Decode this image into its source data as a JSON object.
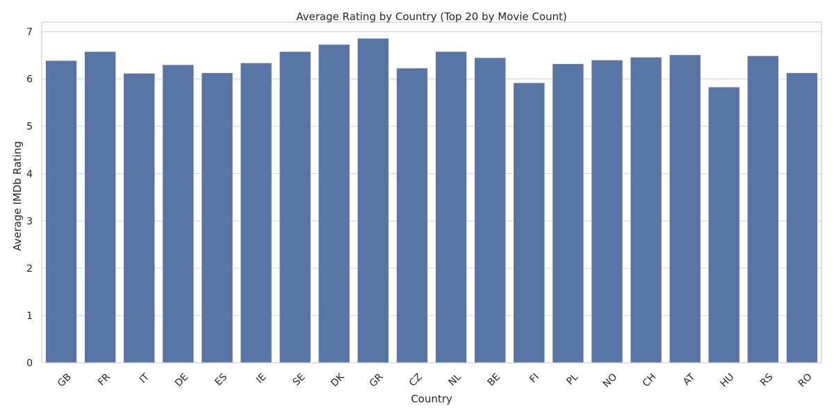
{
  "chart_data": {
    "type": "bar",
    "title": "Average Rating by Country (Top 20 by Movie Count)",
    "xlabel": "Country",
    "ylabel": "Average IMDb Rating",
    "categories": [
      "GB",
      "FR",
      "IT",
      "DE",
      "ES",
      "IE",
      "SE",
      "DK",
      "GR",
      "CZ",
      "NL",
      "BE",
      "FI",
      "PL",
      "NO",
      "CH",
      "AT",
      "HU",
      "RS",
      "RO"
    ],
    "values": [
      6.39,
      6.58,
      6.12,
      6.3,
      6.13,
      6.34,
      6.58,
      6.73,
      6.86,
      6.23,
      6.58,
      6.45,
      5.92,
      6.32,
      6.4,
      6.46,
      6.51,
      5.83,
      6.49,
      6.13
    ],
    "ylim": [
      0,
      7.2
    ],
    "yticks": [
      0,
      1,
      2,
      3,
      4,
      5,
      6,
      7
    ],
    "grid": true,
    "bar_color": "#5975a4"
  }
}
